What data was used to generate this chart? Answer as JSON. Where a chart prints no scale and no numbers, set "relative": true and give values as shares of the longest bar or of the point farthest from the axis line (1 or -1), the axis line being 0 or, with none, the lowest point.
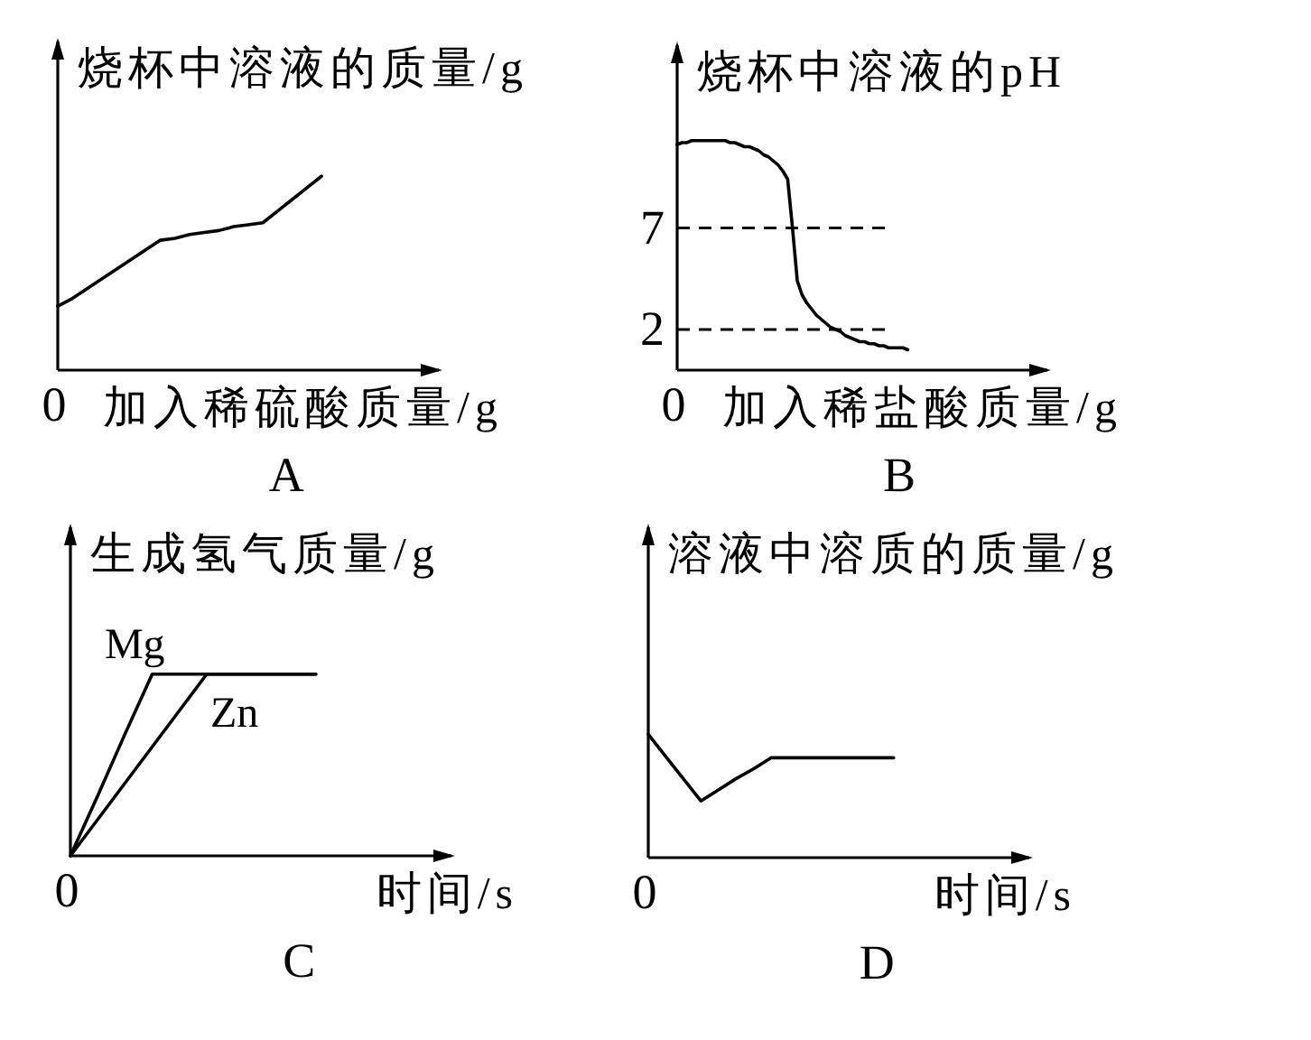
{
  "chart_data": [
    {
      "type": "line",
      "title": "A",
      "xlabel": "加入稀硫酸质量/g",
      "ylabel": "烧杯中溶液的质量/g",
      "relative": true,
      "annotations": [
        "0"
      ],
      "categories": [
        null,
        null,
        null,
        null,
        null,
        null,
        null,
        null,
        null,
        null,
        null,
        null,
        null,
        null,
        null,
        null,
        null,
        null,
        null
      ],
      "series": [
        {
          "color": "#000000",
          "values": [
            0.33,
            0.37,
            0.42,
            0.47,
            0.52,
            0.57,
            0.62,
            0.67,
            0.68,
            0.7,
            0.71,
            0.72,
            0.74,
            0.75,
            0.76,
            0.82,
            0.88,
            0.94,
            1
          ]
        }
      ]
    },
    {
      "type": "line",
      "title": "B",
      "xlabel": "加入稀盐酸质量/g",
      "ylabel": "烧杯中溶液的pH",
      "annotations": [
        "0"
      ],
      "ylim": [
        0,
        16
      ],
      "yticks": [
        2,
        7
      ],
      "categories": [
        null,
        null,
        null,
        null,
        null,
        null,
        null,
        null,
        null,
        null,
        null,
        null,
        null,
        null,
        null,
        null,
        null,
        null,
        null,
        null,
        null,
        null,
        null,
        null,
        null,
        null,
        null,
        null,
        null,
        null,
        null,
        null,
        null,
        null,
        null,
        null,
        null,
        null,
        null,
        null,
        null,
        null,
        null,
        null,
        null,
        null,
        null,
        null,
        null
      ],
      "series": [
        {
          "color": "#000000",
          "values": [
            11.1,
            11.2,
            11.2,
            11.3,
            11.3,
            11.3,
            11.3,
            11.3,
            11.3,
            11.3,
            11.3,
            11.2,
            11.2,
            11.1,
            11.0,
            11.0,
            10.9,
            10.8,
            10.6,
            10.5,
            10.3,
            10.1,
            9.8,
            9.4,
            7.0,
            4.4,
            3.7,
            3.3,
            3.0,
            2.7,
            2.5,
            2.3,
            2.1,
            2.0,
            1.9,
            1.7,
            1.6,
            1.5,
            1.4,
            1.4,
            1.3,
            1.3,
            1.2,
            1.2,
            1.1,
            1.1,
            1.1,
            1.1,
            1.0
          ]
        }
      ],
      "ref_lines": [
        {
          "axis": "y",
          "value": 7,
          "line_style": "dashed"
        },
        {
          "axis": "y",
          "value": 2,
          "line_style": "dashed"
        }
      ]
    },
    {
      "type": "line",
      "title": "C",
      "xlabel": "时间/s",
      "ylabel": "生成氢气质量/g",
      "relative": true,
      "annotations": [
        "0"
      ],
      "categories": [
        null,
        null,
        null,
        null,
        null,
        null,
        null,
        null,
        null,
        null
      ],
      "series": [
        {
          "name": "Mg",
          "color": "#000000",
          "values": [
            0,
            0.33,
            0.67,
            1,
            1,
            1,
            1,
            1,
            1,
            1
          ]
        },
        {
          "name": "Zn",
          "color": "#000000",
          "values": [
            0,
            0.2,
            0.4,
            0.6,
            0.8,
            1,
            1,
            1,
            1,
            1
          ]
        }
      ]
    },
    {
      "type": "line",
      "title": "D",
      "xlabel": "时间/s",
      "ylabel": "溶液中溶质的质量/g",
      "relative": true,
      "annotations": [
        "0"
      ],
      "categories": [
        null,
        null,
        null,
        null,
        null,
        null,
        null,
        null,
        null,
        null,
        null,
        null,
        null,
        null,
        null
      ],
      "series": [
        {
          "color": "#000000",
          "values": [
            1,
            0.82,
            0.64,
            0.46,
            0.55,
            0.64,
            0.72,
            0.81,
            0.81,
            0.81,
            0.81,
            0.81,
            0.81,
            0.81,
            0.81
          ]
        }
      ]
    }
  ]
}
